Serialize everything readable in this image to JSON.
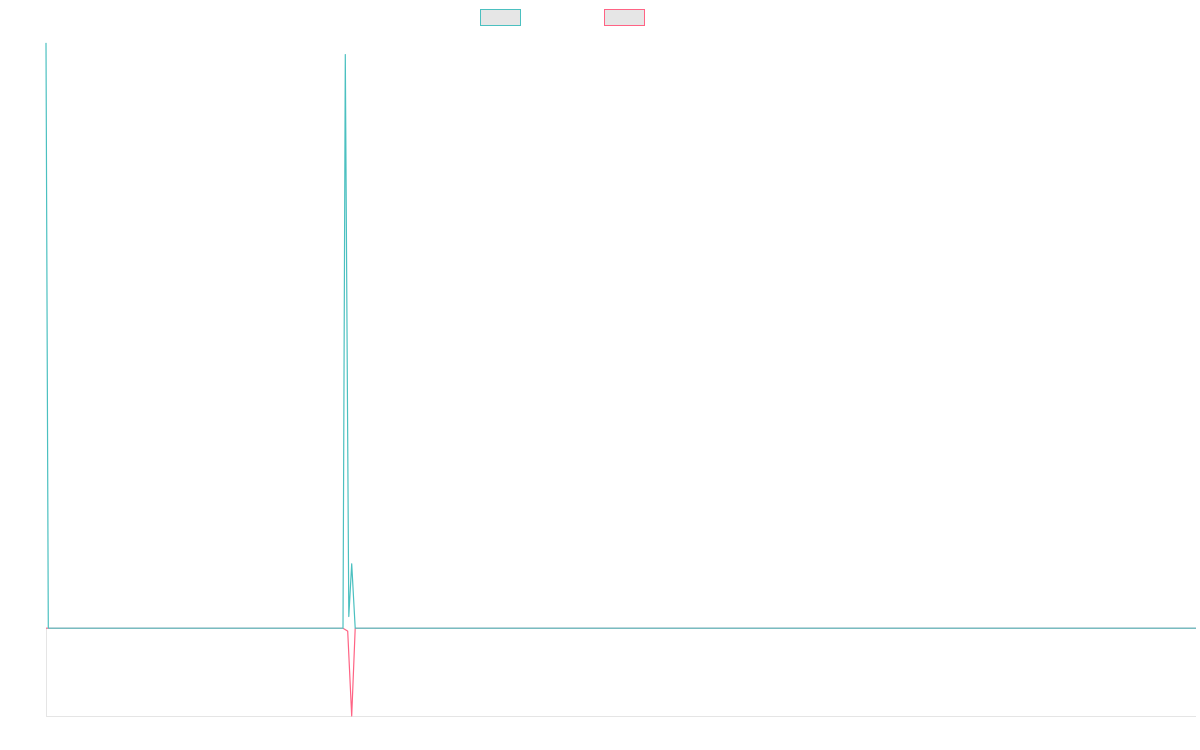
{
  "chart_data": {
    "type": "line",
    "title": "",
    "xlabel": "",
    "ylabel": "",
    "grid": false,
    "legend_position": "top-center",
    "x_count": 200,
    "ylim": [
      -15,
      101
    ],
    "series": [
      {
        "color": "#4bc0c0",
        "points": [
          [
            0,
            100
          ],
          [
            0.4,
            0
          ],
          [
            51.4,
            0
          ],
          [
            51.8,
            98
          ],
          [
            52.4,
            2
          ],
          [
            52.9,
            11
          ],
          [
            53.5,
            0
          ],
          [
            199,
            0
          ]
        ]
      },
      {
        "color": "#ff6384",
        "points": [
          [
            0,
            0
          ],
          [
            51.4,
            0
          ],
          [
            52.2,
            -0.5
          ],
          [
            52.9,
            -15
          ],
          [
            53.5,
            0
          ],
          [
            199,
            0
          ]
        ]
      }
    ]
  }
}
